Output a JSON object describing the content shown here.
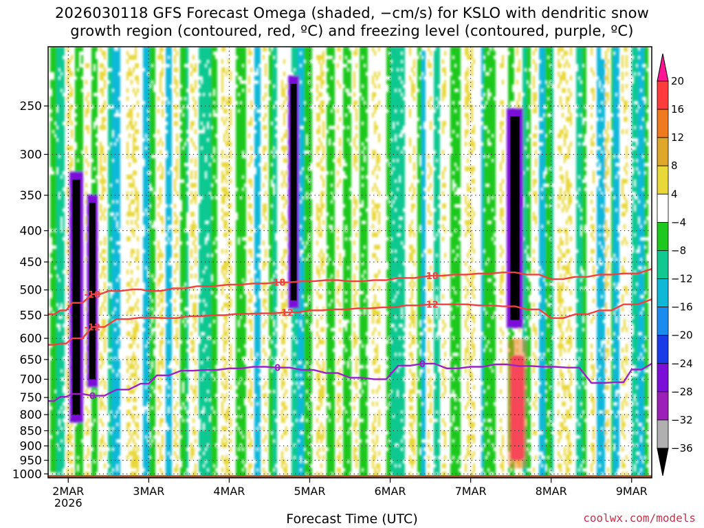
{
  "title": {
    "line1": "2026030118 GFS Forecast Omega (shaded, −cm/s) for KSLO with dendritic snow",
    "line2": "growth region (contoured, red, ºC) and freezing level (contoured, purple, ºC)"
  },
  "credit": "coolwx.com/models",
  "chart_data": {
    "type": "heatmap",
    "title": "2026030118 GFS Forecast Omega (shaded, −cm/s) for KSLO with dendritic snow growth region (contoured, red, ºC) and freezing level (contoured, purple, ºC)",
    "xlabel": "Forecast Time (UTC)",
    "ylabel": "",
    "x_ticks": [
      "2MAR",
      "3MAR",
      "4MAR",
      "5MAR",
      "6MAR",
      "7MAR",
      "8MAR",
      "9MAR"
    ],
    "x_tick_sub": "2026",
    "x_range_days": [
      1.75,
      9.25
    ],
    "y_ticks": [
      250,
      300,
      350,
      400,
      450,
      500,
      550,
      600,
      650,
      700,
      750,
      800,
      850,
      900,
      950,
      1000
    ],
    "y_range_hpa": [
      200,
      1015
    ],
    "y_scale": "log-pressure",
    "grid": true,
    "colorbar": {
      "labels": [
        "20",
        "16",
        "12",
        "8",
        "4",
        "−4",
        "−8",
        "−12",
        "−16",
        "−20",
        "−24",
        "−28",
        "−32",
        "−36"
      ],
      "colors": [
        "#ff1493",
        "#ff3b3b",
        "#f07a1e",
        "#e0a82a",
        "#e8d83a",
        "#ffffff",
        "#1ec81e",
        "#10c890",
        "#10b8d8",
        "#1a8cf0",
        "#1a3ce8",
        "#7a10d8",
        "#9a20b8",
        "#b0b0b0",
        "#000000"
      ]
    },
    "contours": {
      "dgz_minus18": {
        "label": "-18",
        "color": "#f04040",
        "x": [
          1.75,
          1.9,
          2.05,
          2.3,
          2.5,
          2.8,
          3.0,
          3.3,
          3.6,
          4.0,
          4.3,
          4.6,
          4.9,
          5.2,
          5.5,
          5.8,
          6.1,
          6.5,
          6.8,
          7.1,
          7.4,
          7.7,
          8.0,
          8.3,
          8.6,
          8.9,
          9.25
        ],
        "y": [
          548,
          540,
          525,
          508,
          502,
          499,
          502,
          497,
          493,
          490,
          488,
          486,
          484,
          482,
          484,
          482,
          478,
          474,
          472,
          470,
          468,
          472,
          480,
          476,
          472,
          470,
          462
        ]
      },
      "dgz_minus12": {
        "label": "-12",
        "color": "#f04040",
        "x": [
          1.75,
          1.9,
          2.05,
          2.3,
          2.6,
          2.9,
          3.2,
          3.5,
          3.8,
          4.1,
          4.4,
          4.7,
          5.0,
          5.3,
          5.6,
          5.9,
          6.2,
          6.5,
          6.8,
          7.1,
          7.4,
          7.7,
          8.0,
          8.3,
          8.6,
          8.9,
          9.25
        ],
        "y": [
          615,
          612,
          600,
          575,
          558,
          555,
          556,
          552,
          550,
          547,
          546,
          544,
          540,
          538,
          536,
          534,
          530,
          528,
          528,
          530,
          532,
          538,
          556,
          548,
          540,
          528,
          518
        ]
      },
      "freezing_0": {
        "label": "0",
        "color": "#9a20c8",
        "x": [
          1.75,
          1.9,
          2.05,
          2.3,
          2.6,
          2.9,
          3.1,
          3.4,
          3.7,
          4.0,
          4.3,
          4.6,
          4.9,
          5.2,
          5.5,
          5.8,
          6.1,
          6.4,
          6.7,
          7.0,
          7.3,
          7.6,
          7.9,
          8.2,
          8.5,
          8.8,
          9.0,
          9.25
        ],
        "y": [
          760,
          748,
          740,
          745,
          728,
          712,
          690,
          678,
          676,
          672,
          668,
          670,
          676,
          684,
          696,
          700,
          665,
          660,
          672,
          668,
          662,
          666,
          668,
          670,
          710,
          708,
          675,
          660
        ]
      }
    }
  }
}
